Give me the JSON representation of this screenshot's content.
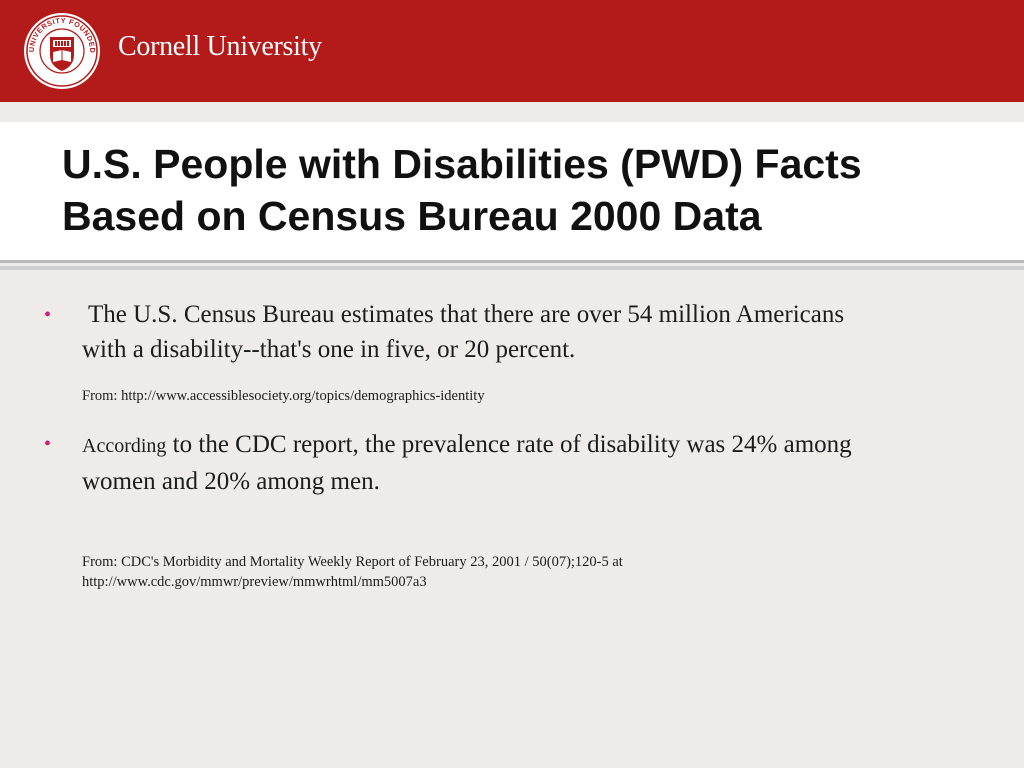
{
  "header": {
    "brand_name": "Cornell University",
    "seal_text": "CORNELL UNIVERSITY FOUNDED A.D. 1865",
    "colors": {
      "brand_red": "#b31b1b",
      "bullet_pink": "#d11d6a"
    },
    "seal_icon": "cornell-seal-icon"
  },
  "slide": {
    "title_line1": "U.S. People with Disabilities (PWD) Facts",
    "title_line2": "Based on Census Bureau 2000 Data",
    "bullets": [
      {
        "line1": "The U.S. Census Bureau estimates that there are over 54 million Americans",
        "line2": "with a disability--that's one in five, or 20 percent."
      },
      {
        "lead_word": "According",
        "line1_rest": " to the CDC report, the prevalence rate of disability was 24% among",
        "line2": "women and 20% among men."
      }
    ],
    "sources": [
      {
        "line1": "From: http://www.accessiblesociety.org/topics/demographics-identity"
      },
      {
        "line1": "From:  CDC's Morbidity and Mortality Weekly Report of February 23, 2001 / 50(07);120-5 at",
        "line2": "http://www.cdc.gov/mmwr/preview/mmwrhtml/mm5007a3"
      }
    ],
    "bullet_glyph": "•"
  }
}
